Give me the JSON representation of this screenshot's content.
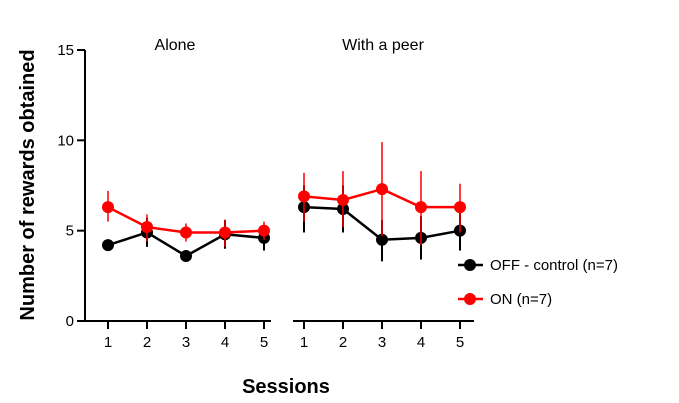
{
  "chart_data": {
    "type": "line",
    "xlabel": "Sessions",
    "ylabel": "Number of rewards obtained",
    "ylim": [
      0,
      15
    ],
    "yticks": [
      "0",
      "5",
      "10",
      "15"
    ],
    "grid": false,
    "legend_placement": "right",
    "panels": [
      {
        "title": "Alone",
        "x": [
          "1",
          "2",
          "3",
          "4",
          "5"
        ],
        "series": [
          {
            "name": "OFF - control (n=7)",
            "color": "#000000",
            "values": [
              4.2,
              4.9,
              3.6,
              4.8,
              4.6
            ],
            "err_low": [
              4.2,
              4.1,
              3.6,
              4.0,
              3.9
            ],
            "err_high": [
              4.2,
              5.7,
              3.6,
              5.6,
              5.2
            ]
          },
          {
            "name": "ON (n=7)",
            "color": "#ff0000",
            "values": [
              6.3,
              5.2,
              4.9,
              4.9,
              5.0
            ],
            "err_low": [
              5.5,
              4.4,
              4.4,
              4.1,
              4.5
            ],
            "err_high": [
              7.2,
              5.9,
              5.4,
              5.6,
              5.5
            ]
          }
        ]
      },
      {
        "title": "With a peer",
        "x": [
          "1",
          "2",
          "3",
          "4",
          "5"
        ],
        "series": [
          {
            "name": "OFF - control (n=7)",
            "color": "#000000",
            "values": [
              6.3,
              6.2,
              4.5,
              4.6,
              5.0
            ],
            "err_low": [
              4.9,
              4.9,
              3.3,
              3.4,
              3.9
            ],
            "err_high": [
              7.5,
              7.5,
              5.6,
              5.8,
              6.1
            ]
          },
          {
            "name": "ON (n=7)",
            "color": "#ff0000",
            "values": [
              6.9,
              6.7,
              7.3,
              6.3,
              6.3
            ],
            "err_low": [
              5.5,
              5.2,
              4.7,
              4.2,
              4.9
            ],
            "err_high": [
              8.2,
              8.3,
              9.9,
              8.3,
              7.6
            ]
          }
        ]
      }
    ],
    "legend": [
      {
        "label": "OFF - control (n=7)",
        "color": "#000000"
      },
      {
        "label": "ON (n=7)",
        "color": "#ff0000"
      }
    ]
  }
}
